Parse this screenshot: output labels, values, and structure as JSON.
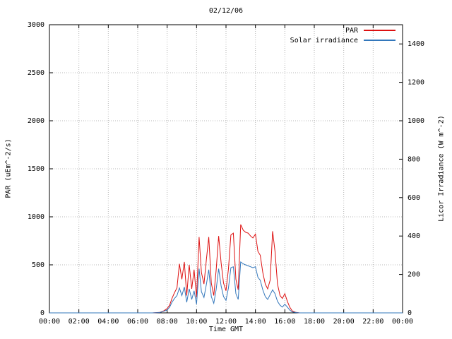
{
  "chart_data": {
    "type": "line",
    "title": "02/12/06",
    "xlabel": "Time GMT",
    "ylabel_left": "PAR (uEm^-2/s)",
    "ylabel_right": "Licor Irradiance (W m^-2)",
    "xlim_hours": [
      0,
      24
    ],
    "ylim_left": [
      0,
      3000
    ],
    "ylim_right": [
      0,
      1500
    ],
    "x_tick_hours": [
      0,
      2,
      4,
      6,
      8,
      10,
      12,
      14,
      16,
      18,
      20,
      22,
      24
    ],
    "x_tick_labels": [
      "00:00",
      "02:00",
      "04:00",
      "06:00",
      "08:00",
      "10:00",
      "12:00",
      "14:00",
      "16:00",
      "18:00",
      "20:00",
      "22:00",
      "00:00"
    ],
    "y_ticks_left": [
      0,
      500,
      1000,
      1500,
      2000,
      2500,
      3000
    ],
    "y_ticks_right": [
      0,
      200,
      400,
      600,
      800,
      1000,
      1200,
      1400
    ],
    "grid": true,
    "legend_position": "top-right-inside",
    "colors": {
      "grid": "#b8b8b8",
      "axis": "#000000",
      "background": "#ffffff"
    },
    "series": [
      {
        "name": "PAR",
        "axis": "left",
        "color": "#dd1111",
        "x": [
          0,
          7.0,
          7.5,
          7.75,
          8.0,
          8.17,
          8.33,
          8.5,
          8.67,
          8.83,
          9.0,
          9.17,
          9.33,
          9.5,
          9.67,
          9.83,
          10.0,
          10.17,
          10.33,
          10.5,
          10.67,
          10.83,
          11.0,
          11.17,
          11.33,
          11.5,
          11.67,
          11.83,
          12.0,
          12.17,
          12.33,
          12.5,
          12.67,
          12.83,
          13.0,
          13.17,
          13.33,
          13.5,
          13.67,
          13.83,
          14.0,
          14.17,
          14.33,
          14.5,
          14.67,
          14.83,
          15.0,
          15.17,
          15.33,
          15.5,
          15.67,
          15.83,
          16.0,
          16.17,
          16.33,
          16.5,
          16.75,
          17.0,
          24.0
        ],
        "values": [
          0,
          0,
          5,
          20,
          45,
          80,
          150,
          210,
          260,
          510,
          350,
          530,
          180,
          500,
          250,
          450,
          160,
          790,
          420,
          300,
          560,
          790,
          310,
          180,
          440,
          800,
          520,
          310,
          230,
          460,
          810,
          830,
          350,
          240,
          920,
          860,
          840,
          830,
          800,
          780,
          820,
          640,
          600,
          420,
          300,
          250,
          340,
          850,
          640,
          300,
          180,
          150,
          200,
          120,
          60,
          20,
          5,
          0,
          0
        ]
      },
      {
        "name": "Solar irradiance",
        "axis": "right",
        "color": "#3377bb",
        "x": [
          0,
          7.0,
          7.5,
          7.75,
          8.0,
          8.17,
          8.33,
          8.5,
          8.67,
          8.83,
          9.0,
          9.17,
          9.33,
          9.5,
          9.67,
          9.83,
          10.0,
          10.17,
          10.33,
          10.5,
          10.67,
          10.83,
          11.0,
          11.17,
          11.33,
          11.5,
          11.67,
          11.83,
          12.0,
          12.17,
          12.33,
          12.5,
          12.67,
          12.83,
          13.0,
          13.17,
          13.33,
          13.5,
          13.67,
          13.83,
          14.0,
          14.17,
          14.33,
          14.5,
          14.67,
          14.83,
          15.0,
          15.17,
          15.33,
          15.5,
          15.67,
          15.83,
          16.0,
          16.17,
          16.33,
          16.5,
          16.75,
          17.0,
          24.0
        ],
        "values": [
          0,
          0,
          2,
          8,
          15,
          30,
          55,
          75,
          90,
          130,
          90,
          135,
          55,
          125,
          70,
          115,
          45,
          230,
          110,
          80,
          150,
          225,
          85,
          50,
          120,
          230,
          140,
          85,
          65,
          130,
          235,
          240,
          100,
          70,
          265,
          255,
          250,
          245,
          240,
          235,
          240,
          185,
          170,
          120,
          85,
          70,
          95,
          120,
          100,
          60,
          40,
          30,
          45,
          30,
          15,
          5,
          2,
          0,
          0
        ]
      }
    ]
  }
}
